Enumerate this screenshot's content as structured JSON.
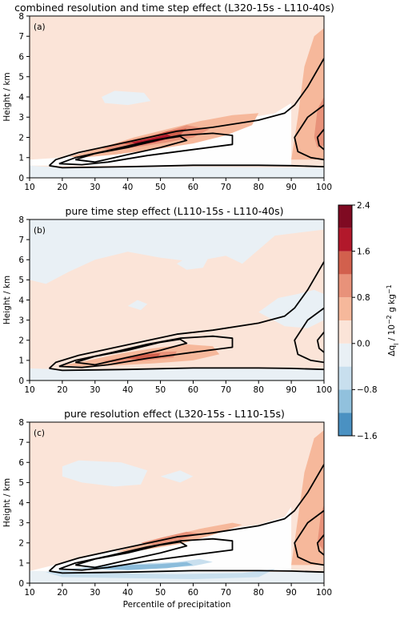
{
  "chart_data": {
    "type": "contour",
    "colorbar": {
      "label": "Δq_l / 10⁻² g kg⁻¹",
      "label_parts": {
        "symbol": "Δq",
        "sub": "l",
        "unit_pre": " / 10",
        "exp": "−2",
        "unit_mid": " g kg",
        "exp2": "−1"
      },
      "ticks": [
        "2.4",
        "1.6",
        "0.8",
        "0.0",
        "−0.8",
        "−1.6"
      ],
      "levels": [
        -1.6,
        -1.2,
        -0.8,
        -0.4,
        0.0,
        0.4,
        0.8,
        1.2,
        1.6,
        2.0,
        2.4
      ],
      "colors": [
        "#4393c3",
        "#92c5de",
        "#d1e5f0",
        "#f7f7f7",
        "#fddbc7",
        "#f4a582",
        "#e38468",
        "#d6604d",
        "#b2182b",
        "#67001f"
      ]
    },
    "panels": [
      {
        "label": "(a)",
        "title": "combined resolution and time step effect  (L320-15s - L110-40s)",
        "ylabel": "Height / km",
        "xlabel": "",
        "xlim": [
          10,
          100
        ],
        "ylim": [
          0,
          8
        ],
        "xticks": [
          "10",
          "20",
          "30",
          "40",
          "50",
          "60",
          "70",
          "80",
          "90",
          "100"
        ],
        "yticks": [
          "0",
          "1",
          "2",
          "3",
          "4",
          "5",
          "6",
          "7",
          "8"
        ]
      },
      {
        "label": "(b)",
        "title": "pure time step effect  (L110-15s - L110-40s)",
        "ylabel": "Height / km",
        "xlabel": "",
        "xlim": [
          10,
          100
        ],
        "ylim": [
          0,
          8
        ],
        "xticks": [
          "10",
          "20",
          "30",
          "40",
          "50",
          "60",
          "70",
          "80",
          "90",
          "100"
        ],
        "yticks": [
          "0",
          "1",
          "2",
          "3",
          "4",
          "5",
          "6",
          "7",
          "8"
        ]
      },
      {
        "label": "(c)",
        "title": "pure resolution effect  (L320-15s - L110-15s)",
        "ylabel": "Height / km",
        "xlabel": "Percentile of precipitation",
        "xlim": [
          10,
          100
        ],
        "ylim": [
          0,
          8
        ],
        "xticks": [
          "10",
          "20",
          "30",
          "40",
          "50",
          "60",
          "70",
          "80",
          "90",
          "100"
        ],
        "yticks": [
          "0",
          "1",
          "2",
          "3",
          "4",
          "5",
          "6",
          "7",
          "8"
        ]
      }
    ],
    "black_contours": [
      [
        [
          16,
          0.6
        ],
        [
          18,
          0.9
        ],
        [
          25,
          1.25
        ],
        [
          35,
          1.6
        ],
        [
          45,
          1.95
        ],
        [
          55,
          2.3
        ],
        [
          66,
          2.5
        ],
        [
          80,
          2.85
        ],
        [
          88,
          3.2
        ],
        [
          91,
          3.6
        ],
        [
          95,
          4.5
        ],
        [
          100,
          5.9
        ]
      ],
      [
        [
          16,
          0.6
        ],
        [
          20,
          0.5
        ],
        [
          40,
          0.55
        ],
        [
          60,
          0.62
        ],
        [
          80,
          0.62
        ],
        [
          90,
          0.6
        ],
        [
          100,
          0.55
        ]
      ],
      [
        [
          19,
          0.7
        ],
        [
          24,
          1.0
        ],
        [
          34,
          1.35
        ],
        [
          46,
          1.8
        ],
        [
          56,
          2.1
        ],
        [
          66,
          2.2
        ],
        [
          72,
          2.1
        ],
        [
          72,
          1.65
        ],
        [
          60,
          1.4
        ],
        [
          46,
          1.1
        ],
        [
          34,
          0.78
        ],
        [
          26,
          0.65
        ],
        [
          19,
          0.7
        ]
      ],
      [
        [
          24,
          0.9
        ],
        [
          30,
          1.2
        ],
        [
          40,
          1.5
        ],
        [
          50,
          1.9
        ],
        [
          56,
          2.05
        ],
        [
          58,
          1.85
        ],
        [
          50,
          1.5
        ],
        [
          40,
          1.15
        ],
        [
          30,
          0.78
        ],
        [
          24,
          0.9
        ]
      ],
      [
        [
          100,
          3.6
        ],
        [
          95,
          3.0
        ],
        [
          91,
          2.0
        ],
        [
          92,
          1.3
        ],
        [
          96,
          1.0
        ],
        [
          100,
          0.9
        ]
      ],
      [
        [
          100,
          2.4
        ],
        [
          98,
          2.0
        ],
        [
          98.5,
          1.6
        ],
        [
          100,
          1.4
        ]
      ]
    ]
  }
}
